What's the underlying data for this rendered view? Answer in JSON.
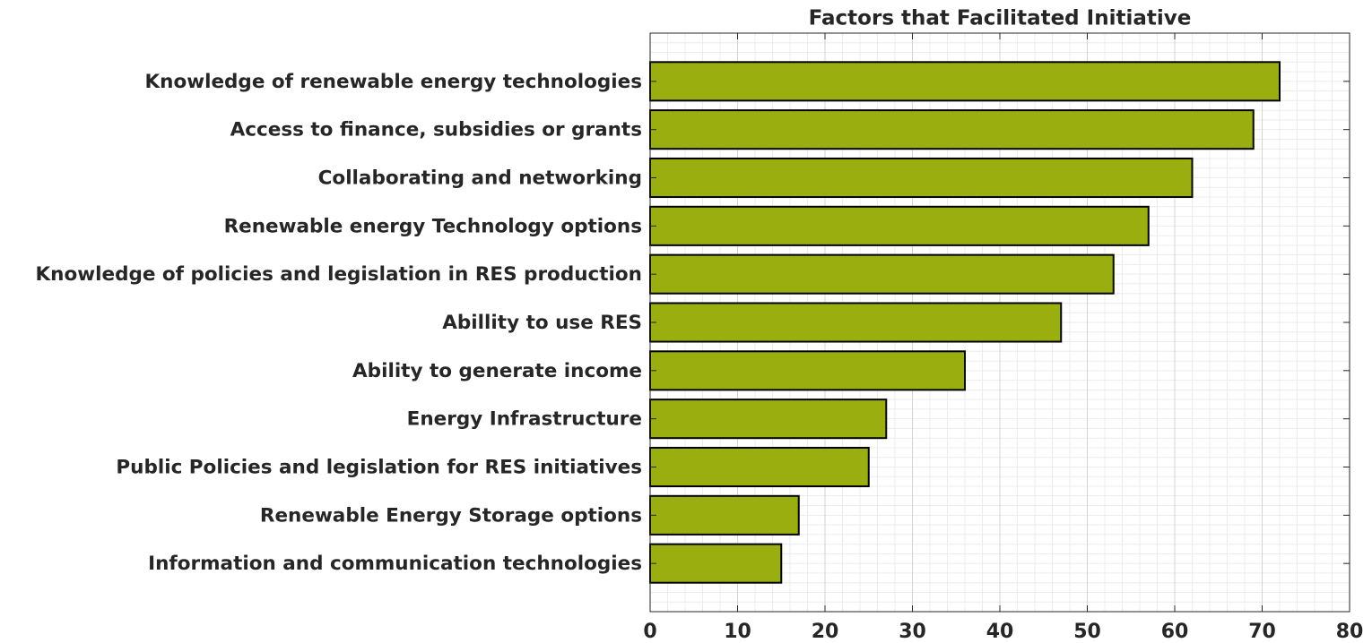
{
  "chart_data": {
    "type": "barh",
    "title": "Factors that Facilitated Initiative",
    "categories": [
      "Knowledge of renewable energy technologies",
      "Access to finance, subsidies or grants",
      "Collaborating and networking",
      "Renewable energy Technology options",
      "Knowledge of policies and legislation in RES production",
      "Abillity to use RES",
      "Ability to generate income",
      "Energy Infrastructure",
      "Public Policies and legislation for RES initiatives",
      "Renewable Energy Storage options",
      "Information and communication technologies"
    ],
    "values": [
      72,
      69,
      62,
      57,
      53,
      47,
      36,
      27,
      25,
      17,
      15
    ],
    "color": "#9aae10",
    "xlim": [
      0,
      80
    ],
    "xticks": [
      0,
      10,
      20,
      30,
      40,
      50,
      60,
      70,
      80
    ],
    "grid": true,
    "minor_grid": true
  }
}
